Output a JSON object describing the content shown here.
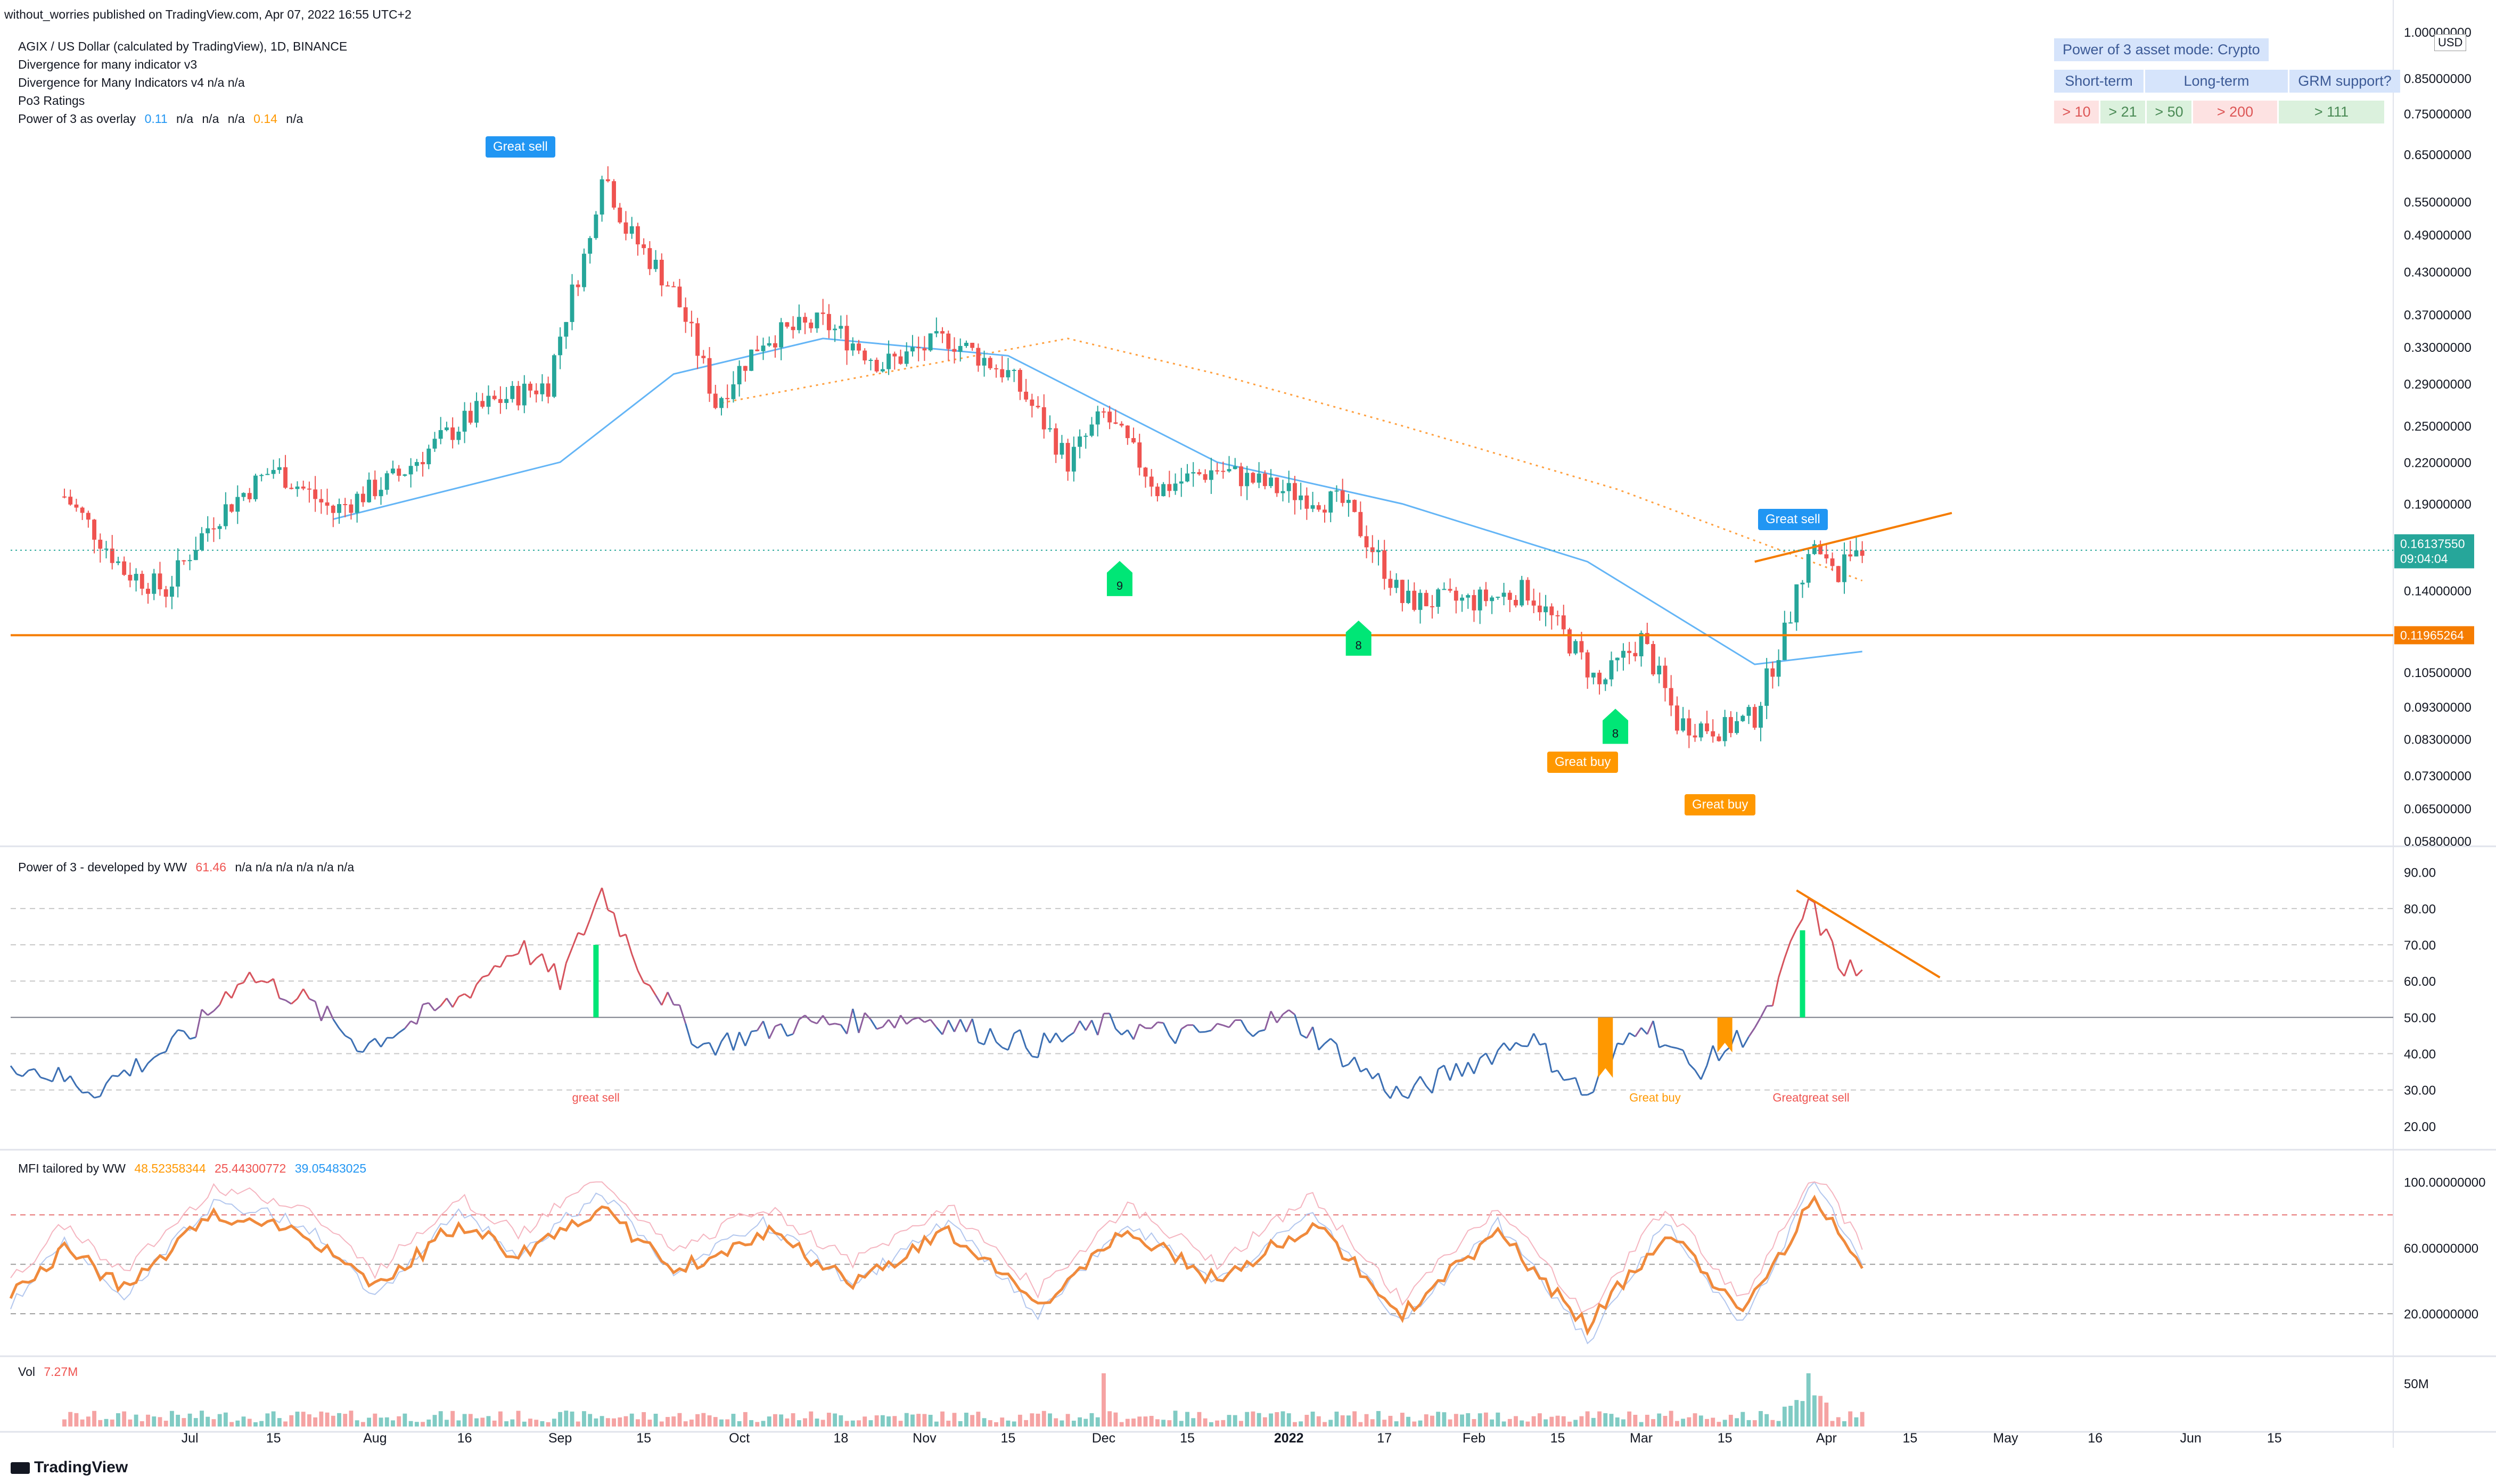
{
  "header": {
    "published": "without_worries published on TradingView.com, Apr 07, 2022 16:55 UTC+2",
    "brand": "TradingView"
  },
  "main_legend": {
    "symbol": "AGIX / US Dollar (calculated by TradingView), 1D, BINANCE",
    "lines": [
      "Divergence for many indicator v3",
      "Divergence for Many Indicators v4  n/a  n/a",
      "Po3 Ratings"
    ],
    "overlay_name": "Power of 3 as overlay",
    "overlay_values": [
      {
        "text": "0.11",
        "color": "#2196f3"
      },
      {
        "text": "n/a",
        "color": "#131722"
      },
      {
        "text": "n/a",
        "color": "#131722"
      },
      {
        "text": "n/a",
        "color": "#131722"
      },
      {
        "text": "0.14",
        "color": "#ff9800"
      },
      {
        "text": "n/a",
        "color": "#131722"
      }
    ]
  },
  "ratings_table": {
    "title": "Power of 3 asset mode: Crypto",
    "headers": [
      "Short-term",
      "Long-term",
      "GRM support?"
    ],
    "cells": [
      {
        "text": "> 10",
        "tone": "red"
      },
      {
        "text": "> 21",
        "tone": "grn"
      },
      {
        "text": "> 50",
        "tone": "grn"
      },
      {
        "text": "> 200",
        "tone": "red"
      },
      {
        "text": "> 111",
        "tone": "grn"
      }
    ]
  },
  "labels": {
    "great_sell_top": "Great sell",
    "great_sell_right": "Great sell",
    "great_buy_1": "Great buy",
    "great_buy_2": "Great buy",
    "td9": "9",
    "td8a": "8",
    "td8b": "8",
    "po3_great_sell": "great sell",
    "po3_great_buy": "Great buy",
    "po3_overlap": "Greatgreat sell"
  },
  "price_axis": {
    "unit": "USD",
    "ticks": [
      "1.00000000",
      "0.85000000",
      "0.75000000",
      "0.65000000",
      "0.55000000",
      "0.49000000",
      "0.43000000",
      "0.37000000",
      "0.33000000",
      "0.29000000",
      "0.25000000",
      "0.22000000",
      "0.19000000",
      "0.14000000",
      "0.10500000",
      "0.09300000",
      "0.08300000",
      "0.07300000",
      "0.06500000",
      "0.05800000"
    ],
    "last_price": "0.16137550",
    "countdown": "09:04:04",
    "support_level": "0.11965264"
  },
  "time_axis": [
    "Jul",
    "15",
    "Aug",
    "16",
    "Sep",
    "15",
    "Oct",
    "18",
    "Nov",
    "15",
    "Dec",
    "15",
    "2022",
    "17",
    "Feb",
    "15",
    "Mar",
    "15",
    "Apr",
    "15",
    "May",
    "16",
    "Jun",
    "15"
  ],
  "po3_panel": {
    "name": "Power of 3 - developed by WW",
    "value": "61.46",
    "value_color": "#ef5350",
    "na": "n/a  n/a  n/a  n/a  n/a  n/a",
    "ticks": [
      "90.00",
      "80.00",
      "70.00",
      "60.00",
      "50.00",
      "40.00",
      "30.00",
      "20.00"
    ]
  },
  "mfi_panel": {
    "name": "MFI tailored by WW",
    "values": [
      {
        "text": "48.52358344",
        "color": "#ff9800"
      },
      {
        "text": "25.44300772",
        "color": "#ef5350"
      },
      {
        "text": "39.05483025",
        "color": "#2196f3"
      }
    ],
    "ticks": [
      "100.00000000",
      "60.00000000",
      "20.00000000"
    ]
  },
  "vol_panel": {
    "name": "Vol",
    "value": "7.27M",
    "value_color": "#ef5350",
    "tick": "50M"
  },
  "chart_data": [
    {
      "type": "candlestick",
      "title": "AGIX / US Dollar (calculated by TradingView), 1D, BINANCE",
      "y_scale": "log",
      "ylim": [
        0.058,
        1.0
      ],
      "x_range": [
        "2021-06-01",
        "2022-06-30"
      ],
      "close_keypoints": [
        {
          "date": "2021-06-10",
          "close": 0.195
        },
        {
          "date": "2021-06-20",
          "close": 0.15
        },
        {
          "date": "2021-06-27",
          "close": 0.14
        },
        {
          "date": "2021-07-05",
          "close": 0.18
        },
        {
          "date": "2021-07-15",
          "close": 0.215
        },
        {
          "date": "2021-07-25",
          "close": 0.185
        },
        {
          "date": "2021-08-05",
          "close": 0.21
        },
        {
          "date": "2021-08-20",
          "close": 0.27
        },
        {
          "date": "2021-08-30",
          "close": 0.29
        },
        {
          "date": "2021-09-06",
          "close": 0.48
        },
        {
          "date": "2021-09-08",
          "close": 0.62
        },
        {
          "date": "2021-09-12",
          "close": 0.5
        },
        {
          "date": "2021-09-20",
          "close": 0.4
        },
        {
          "date": "2021-09-27",
          "close": 0.27
        },
        {
          "date": "2021-10-05",
          "close": 0.34
        },
        {
          "date": "2021-10-15",
          "close": 0.36
        },
        {
          "date": "2021-10-25",
          "close": 0.31
        },
        {
          "date": "2021-11-05",
          "close": 0.34
        },
        {
          "date": "2021-11-15",
          "close": 0.3
        },
        {
          "date": "2021-11-25",
          "close": 0.22
        },
        {
          "date": "2021-12-01",
          "close": 0.26
        },
        {
          "date": "2021-12-10",
          "close": 0.2
        },
        {
          "date": "2021-12-20",
          "close": 0.215
        },
        {
          "date": "2021-12-30",
          "close": 0.2
        },
        {
          "date": "2022-01-10",
          "close": 0.19
        },
        {
          "date": "2022-01-20",
          "close": 0.135
        },
        {
          "date": "2022-02-01",
          "close": 0.135
        },
        {
          "date": "2022-02-10",
          "close": 0.14
        },
        {
          "date": "2022-02-22",
          "close": 0.1
        },
        {
          "date": "2022-03-01",
          "close": 0.118
        },
        {
          "date": "2022-03-07",
          "close": 0.088
        },
        {
          "date": "2022-03-15",
          "close": 0.086
        },
        {
          "date": "2022-03-20",
          "close": 0.09
        },
        {
          "date": "2022-03-25",
          "close": 0.12
        },
        {
          "date": "2022-03-30",
          "close": 0.165
        },
        {
          "date": "2022-04-03",
          "close": 0.145
        },
        {
          "date": "2022-04-05",
          "close": 0.165
        },
        {
          "date": "2022-04-07",
          "close": 0.161
        }
      ],
      "support_line": 0.11965264,
      "ma_blue_keypoints": [
        {
          "date": "2021-07-25",
          "close": 0.18
        },
        {
          "date": "2021-09-01",
          "close": 0.22
        },
        {
          "date": "2021-09-20",
          "close": 0.3
        },
        {
          "date": "2021-10-15",
          "close": 0.34
        },
        {
          "date": "2021-11-15",
          "close": 0.32
        },
        {
          "date": "2021-12-20",
          "close": 0.22
        },
        {
          "date": "2022-01-20",
          "close": 0.19
        },
        {
          "date": "2022-02-20",
          "close": 0.155
        },
        {
          "date": "2022-03-20",
          "close": 0.108
        },
        {
          "date": "2022-04-07",
          "close": 0.113
        }
      ],
      "ma_orange_keypoints": [
        {
          "date": "2021-09-27",
          "close": 0.27
        },
        {
          "date": "2021-11-25",
          "close": 0.34
        },
        {
          "date": "2021-12-20",
          "close": 0.3
        },
        {
          "date": "2022-01-20",
          "close": 0.25
        },
        {
          "date": "2022-02-25",
          "close": 0.2
        },
        {
          "date": "2022-04-07",
          "close": 0.145
        }
      ]
    },
    {
      "type": "line",
      "title": "Power of 3 - developed by WW",
      "ylim": [
        15,
        92
      ],
      "baseline": 50,
      "keypoints": [
        {
          "date": "2021-06-01",
          "value": 38
        },
        {
          "date": "2021-06-15",
          "value": 30
        },
        {
          "date": "2021-07-01",
          "value": 45
        },
        {
          "date": "2021-07-10",
          "value": 62
        },
        {
          "date": "2021-07-20",
          "value": 55
        },
        {
          "date": "2021-07-30",
          "value": 42
        },
        {
          "date": "2021-08-15",
          "value": 55
        },
        {
          "date": "2021-08-25",
          "value": 70
        },
        {
          "date": "2021-09-01",
          "value": 60
        },
        {
          "date": "2021-09-08",
          "value": 85
        },
        {
          "date": "2021-09-15",
          "value": 62
        },
        {
          "date": "2021-09-25",
          "value": 42
        },
        {
          "date": "2021-10-10",
          "value": 48
        },
        {
          "date": "2021-11-01",
          "value": 50
        },
        {
          "date": "2021-11-20",
          "value": 42
        },
        {
          "date": "2021-12-01",
          "value": 48
        },
        {
          "date": "2021-12-15",
          "value": 45
        },
        {
          "date": "2022-01-01",
          "value": 50
        },
        {
          "date": "2022-01-20",
          "value": 28
        },
        {
          "date": "2022-02-10",
          "value": 45
        },
        {
          "date": "2022-02-20",
          "value": 28
        },
        {
          "date": "2022-03-01",
          "value": 50
        },
        {
          "date": "2022-03-10",
          "value": 35
        },
        {
          "date": "2022-03-22",
          "value": 50
        },
        {
          "date": "2022-03-29",
          "value": 82
        },
        {
          "date": "2022-04-03",
          "value": 65
        },
        {
          "date": "2022-04-07",
          "value": 61.46
        }
      ],
      "divergence_line": [
        {
          "date": "2022-03-27",
          "value": 85
        },
        {
          "date": "2022-04-20",
          "value": 61
        }
      ]
    },
    {
      "type": "line",
      "title": "MFI tailored by WW",
      "ylim": [
        0,
        105
      ],
      "reference_lines": [
        80,
        50,
        20
      ],
      "keypoints": [
        {
          "date": "2021-06-01",
          "value": 30
        },
        {
          "date": "2021-06-10",
          "value": 60
        },
        {
          "date": "2021-06-20",
          "value": 35
        },
        {
          "date": "2021-07-05",
          "value": 80
        },
        {
          "date": "2021-07-20",
          "value": 70
        },
        {
          "date": "2021-08-01",
          "value": 35
        },
        {
          "date": "2021-08-15",
          "value": 75
        },
        {
          "date": "2021-08-25",
          "value": 55
        },
        {
          "date": "2021-09-08",
          "value": 85
        },
        {
          "date": "2021-09-20",
          "value": 45
        },
        {
          "date": "2021-10-05",
          "value": 70
        },
        {
          "date": "2021-10-20",
          "value": 40
        },
        {
          "date": "2021-11-05",
          "value": 70
        },
        {
          "date": "2021-11-20",
          "value": 25
        },
        {
          "date": "2021-12-05",
          "value": 70
        },
        {
          "date": "2021-12-20",
          "value": 40
        },
        {
          "date": "2022-01-05",
          "value": 75
        },
        {
          "date": "2022-01-20",
          "value": 20
        },
        {
          "date": "2022-02-05",
          "value": 70
        },
        {
          "date": "2022-02-20",
          "value": 12
        },
        {
          "date": "2022-03-05",
          "value": 70
        },
        {
          "date": "2022-03-18",
          "value": 20
        },
        {
          "date": "2022-03-30",
          "value": 90
        },
        {
          "date": "2022-04-07",
          "value": 48.52
        }
      ]
    },
    {
      "type": "bar",
      "title": "Vol",
      "ylim": [
        0,
        55000000
      ],
      "last_value": 7270000
    }
  ]
}
